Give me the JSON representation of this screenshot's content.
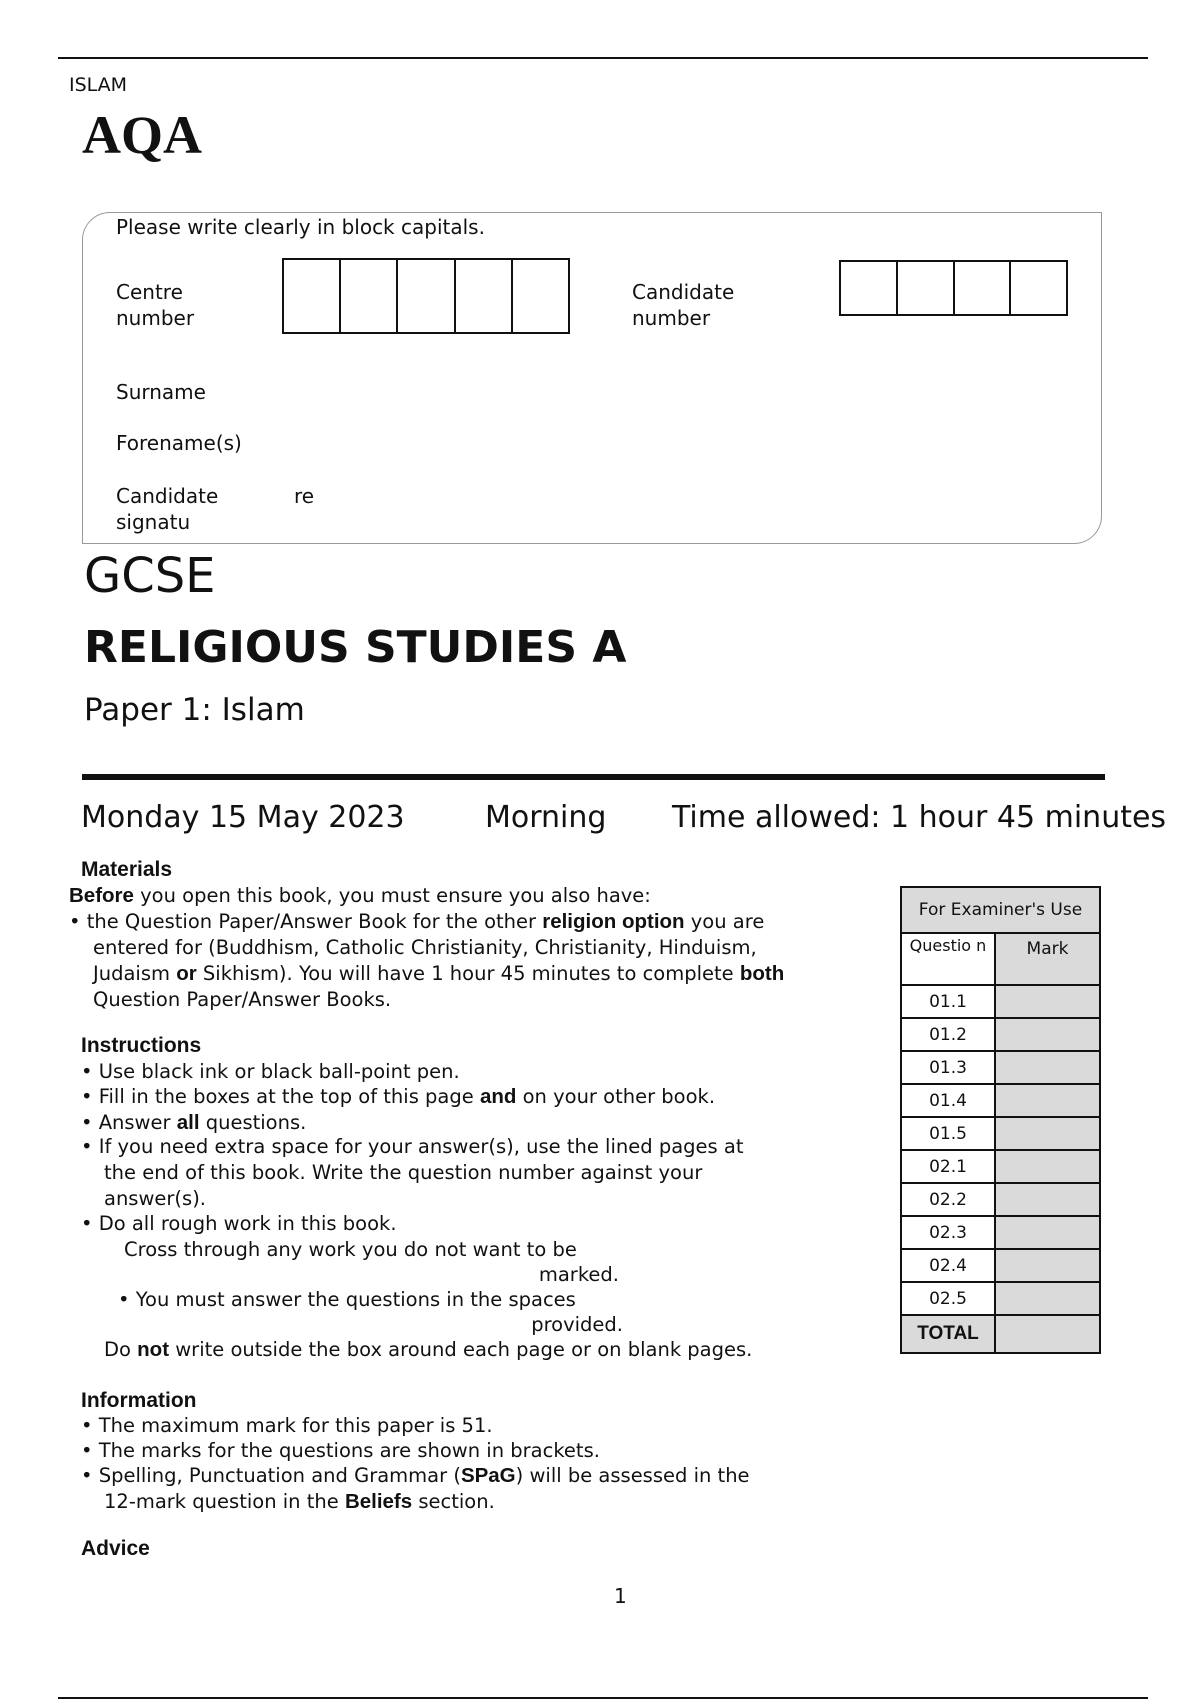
{
  "header": {
    "subject_tag": "ISLAM",
    "logo_text": "AQA"
  },
  "candidate_box": {
    "instruction": "Please write clearly in block capitals.",
    "centre_label_1": "Centre",
    "centre_label_2": "number",
    "centre_boxes": 5,
    "candidate_label_1": "Candidate",
    "candidate_label_2": "number",
    "candidate_boxes": 4,
    "surname_label": "Surname",
    "forename_label": "Forename(s)",
    "signature_label_1": "Candidate",
    "signature_label_2": "signatu",
    "signature_label_3": "re"
  },
  "title": {
    "qualification": "GCSE",
    "subject": "RELIGIOUS STUDIES A",
    "paper": "Paper 1:  Islam"
  },
  "exam_info": {
    "date": "Monday 15 May 2023",
    "session": "Morning",
    "time_allowed": "Time allowed: 1 hour 45 minutes"
  },
  "sections": {
    "materials_heading": "Materials",
    "instructions_heading": "Instructions",
    "information_heading": "Information",
    "advice_heading": "Advice"
  },
  "lines": [
    [
      {
        "t": "Before",
        "b": true
      },
      {
        "t": " you open this book, you must ensure you also have:"
      }
    ],
    [
      {
        "t": "•  the Question Paper/Answer Book for the other "
      },
      {
        "t": "religion option",
        "b": true
      },
      {
        "t": " you are"
      }
    ],
    [
      {
        "t": "entered for (Buddhism, Catholic Christianity, Christianity, Hinduism,"
      }
    ],
    [
      {
        "t": "Judaism "
      },
      {
        "t": "or",
        "b": true
      },
      {
        "t": " Sikhism). You will have 1 hour 45 minutes to complete "
      },
      {
        "t": "both",
        "b": true
      }
    ],
    [
      {
        "t": "Question Paper/Answer Books."
      }
    ],
    [
      {
        "t": "•  Use black ink or black ball-point pen."
      }
    ],
    [
      {
        "t": "•  Fill in the boxes at the top of this page "
      },
      {
        "t": "and",
        "b": true
      },
      {
        "t": " on your other book."
      }
    ],
    [
      {
        "t": "•  Answer "
      },
      {
        "t": "all",
        "b": true
      },
      {
        "t": " questions."
      }
    ],
    [
      {
        "t": "•  If you need extra space for your answer(s), use the lined pages at"
      }
    ],
    [
      {
        "t": "the end of this book.  Write the question number against your"
      }
    ],
    [
      {
        "t": "answer(s)."
      }
    ],
    [
      {
        "t": "•  Do all rough work in this book."
      }
    ],
    [
      {
        "t": "Cross through any work you do not want to be"
      }
    ],
    [
      {
        "t": "marked."
      }
    ],
    [
      {
        "t": "•  You must answer the questions in the spaces"
      }
    ],
    [
      {
        "t": "provided."
      }
    ],
    [
      {
        "t": "Do "
      },
      {
        "t": "not",
        "b": true
      },
      {
        "t": " write outside the box around each page or on blank pages."
      }
    ],
    [
      {
        "t": "•  The maximum mark for this paper is 51."
      }
    ],
    [
      {
        "t": "•  The marks for the questions are shown in brackets."
      }
    ],
    [
      {
        "t": "•  Spelling, Punctuation and Grammar ("
      },
      {
        "t": "SPaG",
        "b": true
      },
      {
        "t": ") will be assessed in the"
      }
    ],
    [
      {
        "t": "12-mark question in the "
      },
      {
        "t": "Beliefs",
        "b": true
      },
      {
        "t": " section."
      }
    ]
  ],
  "examiner_table": {
    "title": "For Examiner's Use",
    "col_question": "Questio n",
    "col_mark": "Mark",
    "questions": [
      "01.1",
      "01.2",
      "01.3",
      "01.4",
      "01.5",
      "02.1",
      "02.2",
      "02.3",
      "02.4",
      "02.5"
    ],
    "total_label": "TOTAL"
  },
  "footer": {
    "page_number": "1"
  }
}
